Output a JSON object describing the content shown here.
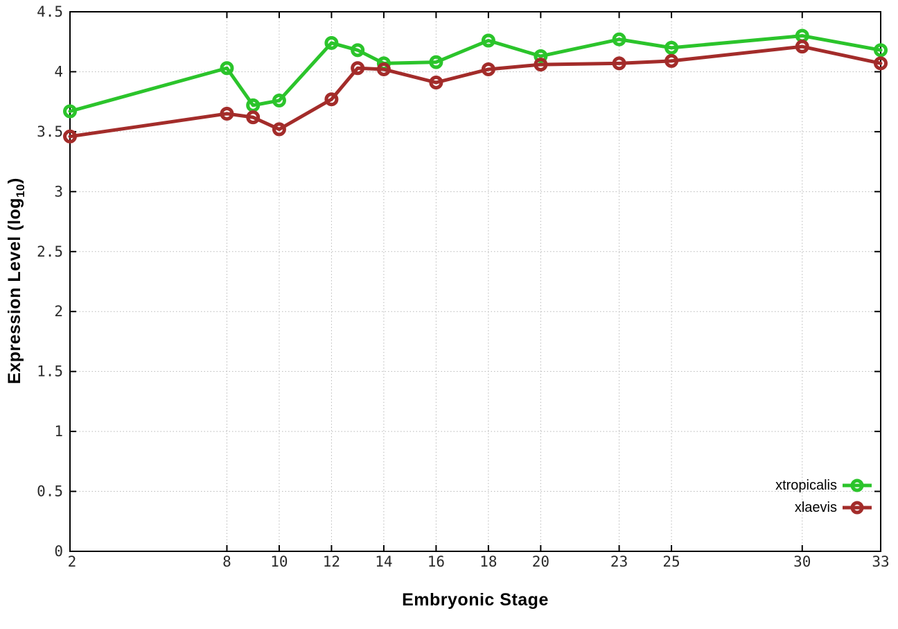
{
  "figure": {
    "background": "#ffffff",
    "border_color": "#000000",
    "grid_color": "#b8b8b8",
    "tick_label_color": "#2a2a2a"
  },
  "chart_data": {
    "type": "line",
    "title": "",
    "xlabel": "Embryonic Stage",
    "ylabel": "Expression Level (log10)",
    "ylabel_parts": {
      "main": "Expression Level (log",
      "sub": "10",
      "close": ")"
    },
    "xlim": [
      2,
      33
    ],
    "ylim": [
      0,
      4.5
    ],
    "grid": true,
    "legend_position": "bottom-right",
    "marker": "open-circle",
    "x_tick_values": [
      2,
      8,
      10,
      12,
      14,
      16,
      18,
      20,
      23,
      25,
      30,
      33
    ],
    "x_tick_labels": [
      "2",
      "8",
      "10",
      "12",
      "14",
      "16",
      "18",
      "20",
      "23",
      "25",
      "30",
      "33"
    ],
    "y_tick_values": [
      0,
      0.5,
      1,
      1.5,
      2,
      2.5,
      3,
      3.5,
      4,
      4.5
    ],
    "y_tick_labels": [
      "0",
      "0.5",
      "1",
      "1.5",
      "2",
      "2.5",
      "3",
      "3.5",
      "4",
      "4.5"
    ],
    "x": [
      2,
      8,
      9,
      10,
      12,
      13,
      14,
      16,
      18,
      20,
      23,
      25,
      30,
      33
    ],
    "series": [
      {
        "name": "xtropicalis",
        "color": "#2bc42b",
        "values": [
          3.67,
          4.03,
          3.72,
          3.76,
          4.24,
          4.18,
          4.07,
          4.08,
          4.26,
          4.13,
          4.27,
          4.2,
          4.3,
          4.18
        ]
      },
      {
        "name": "xlaevis",
        "color": "#a32c2a",
        "values": [
          3.46,
          3.65,
          3.62,
          3.52,
          3.77,
          4.03,
          4.02,
          3.91,
          4.02,
          4.06,
          4.07,
          4.09,
          4.21,
          4.07
        ]
      }
    ]
  }
}
